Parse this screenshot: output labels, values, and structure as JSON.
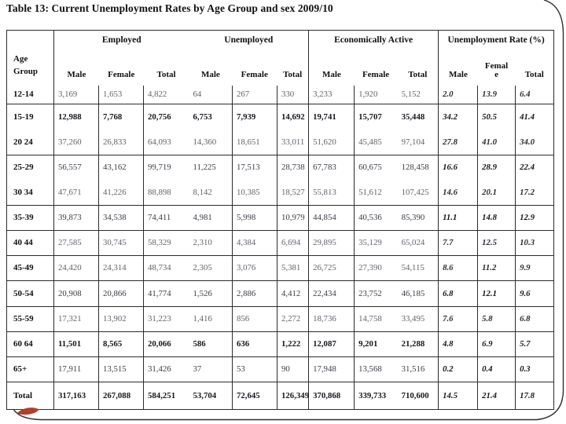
{
  "title": "Table 13: Current Unemployment Rates by Age Group and sex 2009/10",
  "accent_color": "#b0402c",
  "table": {
    "age_header_lines": [
      "Age",
      "Group"
    ],
    "groups": [
      {
        "title": "Employed",
        "subs": [
          "Male",
          "Female",
          "Total"
        ]
      },
      {
        "title": "Unemployed",
        "subs": [
          "Male",
          "Female",
          "Total"
        ]
      },
      {
        "title": "Economically Active",
        "subs": [
          "Male",
          "Female",
          "Total"
        ]
      },
      {
        "title": "Unemployment Rate (%)",
        "subs": [
          "Male",
          "Femal\ne",
          "Total"
        ]
      }
    ],
    "rows": [
      {
        "age": "12-14",
        "emphasis": "light",
        "values": [
          "3,169",
          "1,653",
          "4,822",
          "64",
          "267",
          "330",
          "3,233",
          "1,920",
          "5,152",
          "2.0",
          "13.9",
          "6.4"
        ]
      },
      {
        "age": "15-19",
        "emphasis": "bold",
        "values": [
          "12,988",
          "7,768",
          "20,756",
          "6,753",
          "7,939",
          "14,692",
          "19,741",
          "15,707",
          "35,448",
          "34.2",
          "50.5",
          "41.4"
        ]
      },
      {
        "age": "20 24",
        "emphasis": "light",
        "values": [
          "37,260",
          "26,833",
          "64,093",
          "14,360",
          "18,651",
          "33,011",
          "51,620",
          "45,485",
          "97,104",
          "27.8",
          "41.0",
          "34.0"
        ]
      },
      {
        "age": "25-29",
        "emphasis": "normal",
        "values": [
          "56,557",
          "43,162",
          "99,719",
          "11,225",
          "17,513",
          "28,738",
          "67,783",
          "60,675",
          "128,458",
          "16.6",
          "28.9",
          "22.4"
        ]
      },
      {
        "age": "30 34",
        "emphasis": "light",
        "values": [
          "47,671",
          "41,226",
          "88,898",
          "8,142",
          "10,385",
          "18,527",
          "55,813",
          "51,612",
          "107,425",
          "14.6",
          "20.1",
          "17.2"
        ]
      },
      {
        "age": "35-39",
        "emphasis": "normal",
        "values": [
          "39,873",
          "34,538",
          "74,411",
          "4,981",
          "5,998",
          "10,979",
          "44,854",
          "40,536",
          "85,390",
          "11.1",
          "14.8",
          "12.9"
        ]
      },
      {
        "age": "40 44",
        "emphasis": "light",
        "values": [
          "27,585",
          "30,745",
          "58,329",
          "2,310",
          "4,384",
          "6,694",
          "29,895",
          "35,129",
          "65,024",
          "7.7",
          "12.5",
          "10.3"
        ]
      },
      {
        "age": "45-49",
        "emphasis": "light",
        "values": [
          "24,420",
          "24,314",
          "48,734",
          "2,305",
          "3,076",
          "5,381",
          "26,725",
          "27,390",
          "54,115",
          "8.6",
          "11.2",
          "9.9"
        ]
      },
      {
        "age": "50-54",
        "emphasis": "normal",
        "values": [
          "20,908",
          "20,866",
          "41,774",
          "1,526",
          "2,886",
          "4,412",
          "22,434",
          "23,752",
          "46,185",
          "6.8",
          "12.1",
          "9.6"
        ]
      },
      {
        "age": "55-59",
        "emphasis": "light",
        "values": [
          "17,321",
          "13,902",
          "31,223",
          "1,416",
          "856",
          "2,272",
          "18,736",
          "14,758",
          "33,495",
          "7.6",
          "5.8",
          "6.8"
        ]
      },
      {
        "age": "60 64",
        "emphasis": "bold",
        "values": [
          "11,501",
          "8,565",
          "20,066",
          "586",
          "636",
          "1,222",
          "12,087",
          "9,201",
          "21,288",
          "4.8",
          "6.9",
          "5.7"
        ]
      },
      {
        "age": "65+",
        "emphasis": "normal",
        "values": [
          "17,911",
          "13,515",
          "31,426",
          "37",
          "53",
          "90",
          "17,948",
          "13,568",
          "31,516",
          "0.2",
          "0.4",
          "0.3"
        ]
      },
      {
        "age": "Total",
        "emphasis": "bold",
        "values": [
          "317,163",
          "267,088",
          "584,251",
          "53,704",
          "72,645",
          "126,349",
          "370,868",
          "339,733",
          "710,600",
          "14.5",
          "21.4",
          "17.8"
        ]
      }
    ]
  }
}
